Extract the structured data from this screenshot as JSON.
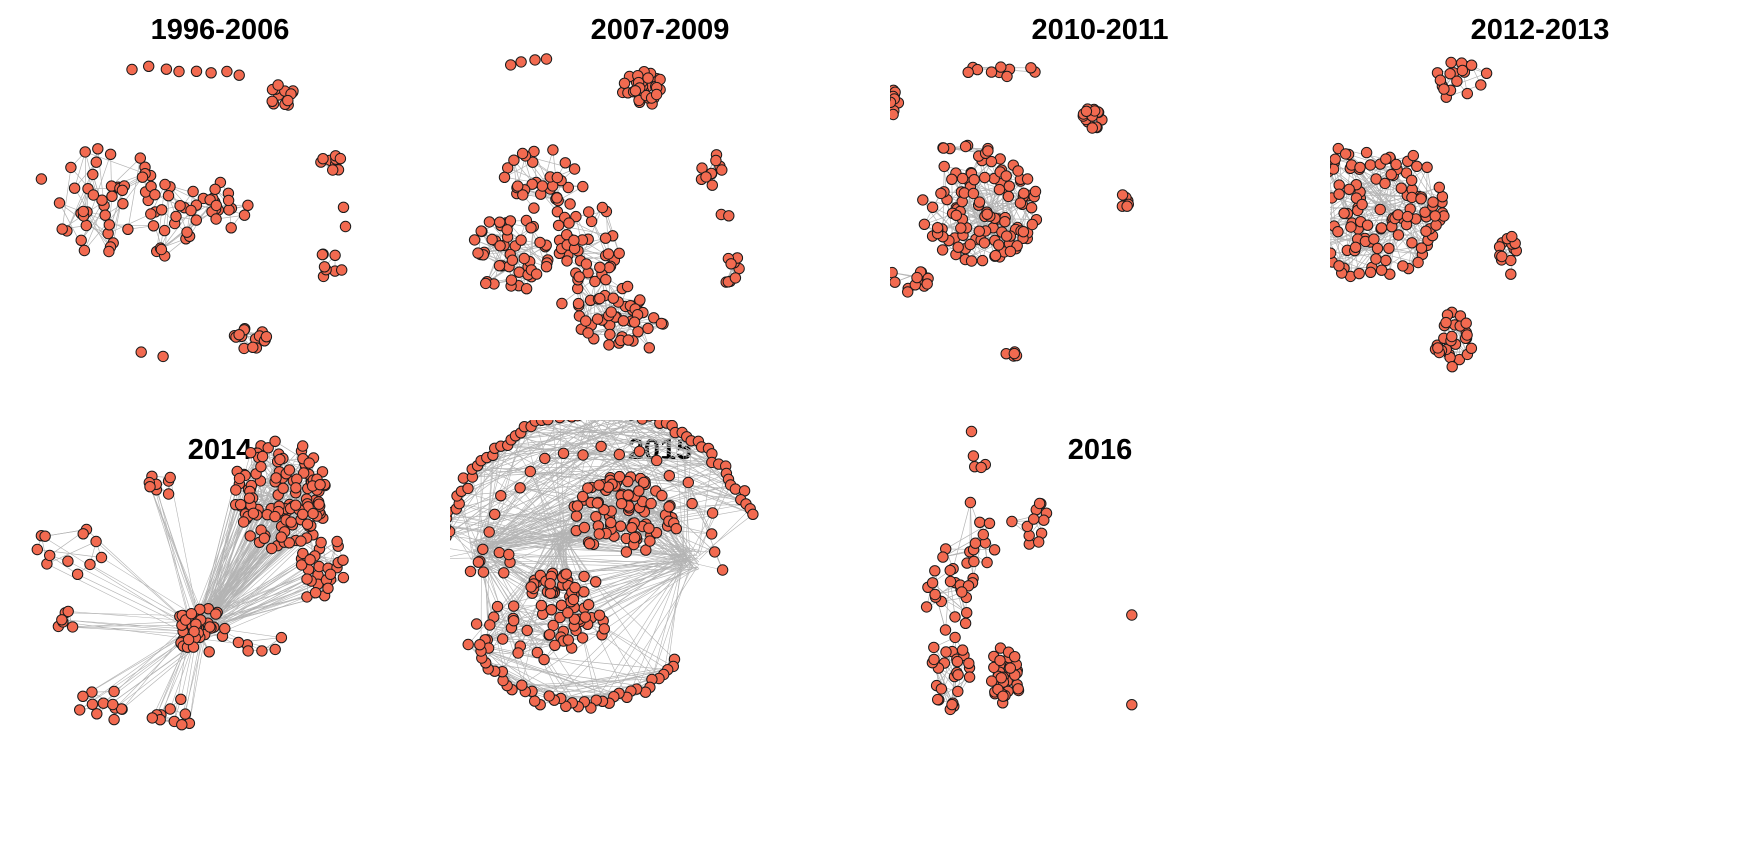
{
  "colors": {
    "node_fill": "#f26a50",
    "node_stroke": "#1a1a1a",
    "edge": "#b4b4b4"
  },
  "panels": [
    {
      "title": "1996-2006"
    },
    {
      "title": "2007-2009"
    },
    {
      "title": "2010-2011"
    },
    {
      "title": "2012-2013"
    },
    {
      "title": "2014"
    },
    {
      "title": "2015"
    },
    {
      "title": "2016"
    }
  ]
}
